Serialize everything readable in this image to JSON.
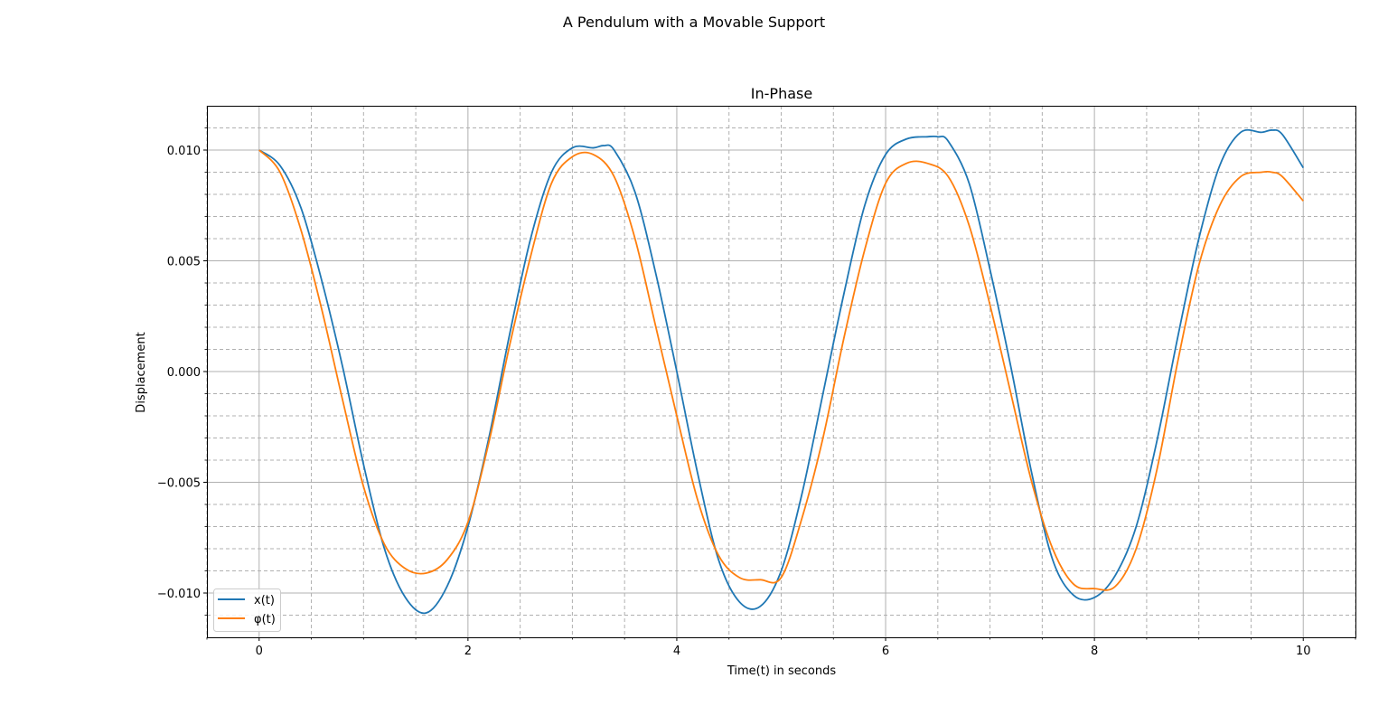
{
  "figure": {
    "suptitle": "A Pendulum with a Movable Support"
  },
  "chart_data": {
    "type": "line",
    "title": "In-Phase",
    "xlabel": "Time(t) in seconds",
    "ylabel": "Displacement",
    "xlim": [
      -0.5,
      10.5
    ],
    "ylim": [
      -0.012,
      0.012
    ],
    "xticks": [
      0,
      2,
      4,
      6,
      8,
      10
    ],
    "xtick_labels": [
      "0",
      "2",
      "4",
      "6",
      "8",
      "10"
    ],
    "yticks": [
      -0.01,
      -0.005,
      0.0,
      0.005,
      0.01
    ],
    "ytick_labels": [
      "−0.010",
      "−0.005",
      "0.000",
      "0.005",
      "0.010"
    ],
    "grid": {
      "major": true,
      "minor": true,
      "minor_style": "dashed"
    },
    "legend": {
      "position": "lower-left"
    },
    "series": [
      {
        "name": "x(t)",
        "color": "#1f77b4",
        "x": [
          0,
          0.2,
          0.4,
          0.6,
          0.8,
          1.0,
          1.2,
          1.4,
          1.6,
          1.8,
          2.0,
          2.2,
          2.4,
          2.6,
          2.8,
          3.0,
          3.2,
          3.3,
          3.4,
          3.6,
          3.8,
          4.0,
          4.2,
          4.4,
          4.6,
          4.8,
          5.0,
          5.2,
          5.4,
          5.6,
          5.8,
          6.0,
          6.2,
          6.4,
          6.5,
          6.6,
          6.8,
          7.0,
          7.2,
          7.4,
          7.6,
          7.8,
          8.0,
          8.2,
          8.4,
          8.6,
          8.8,
          9.0,
          9.2,
          9.4,
          9.6,
          9.7,
          9.8,
          10.0
        ],
        "y": [
          0.01,
          0.0093,
          0.0074,
          0.0041,
          0.0002,
          -0.0042,
          -0.008,
          -0.0102,
          -0.0109,
          -0.0097,
          -0.007,
          -0.003,
          0.0017,
          0.006,
          0.009,
          0.0101,
          0.0101,
          0.0102,
          0.01,
          0.0081,
          0.0044,
          0.0,
          -0.0046,
          -0.0085,
          -0.0104,
          -0.0106,
          -0.009,
          -0.0055,
          -0.001,
          0.0035,
          0.0075,
          0.0098,
          0.0105,
          0.0106,
          0.0106,
          0.0104,
          0.0085,
          0.0046,
          0.0002,
          -0.0046,
          -0.0085,
          -0.0101,
          -0.0102,
          -0.0092,
          -0.007,
          -0.0031,
          0.0016,
          0.006,
          0.0093,
          0.0108,
          0.0108,
          0.0109,
          0.0107,
          0.0092
        ]
      },
      {
        "name": "φ(t)",
        "color": "#ff7f0e",
        "x": [
          0,
          0.2,
          0.4,
          0.6,
          0.8,
          1.0,
          1.2,
          1.4,
          1.6,
          1.8,
          2.0,
          2.2,
          2.4,
          2.6,
          2.8,
          3.0,
          3.2,
          3.4,
          3.6,
          3.8,
          4.0,
          4.2,
          4.4,
          4.6,
          4.8,
          5.0,
          5.2,
          5.4,
          5.6,
          5.8,
          6.0,
          6.2,
          6.4,
          6.6,
          6.8,
          7.0,
          7.2,
          7.4,
          7.6,
          7.8,
          8.0,
          8.2,
          8.4,
          8.6,
          8.8,
          9.0,
          9.2,
          9.4,
          9.6,
          9.7,
          9.8,
          10.0
        ],
        "y": [
          0.01,
          0.009,
          0.0064,
          0.0028,
          -0.0013,
          -0.0052,
          -0.0078,
          -0.0089,
          -0.0091,
          -0.0085,
          -0.0068,
          -0.0032,
          0.0012,
          0.0052,
          0.0085,
          0.0097,
          0.0098,
          0.0088,
          0.006,
          0.002,
          -0.002,
          -0.0058,
          -0.0083,
          -0.0093,
          -0.0094,
          -0.0093,
          -0.0066,
          -0.003,
          0.0015,
          0.0055,
          0.0085,
          0.0094,
          0.0094,
          0.0088,
          0.0066,
          0.003,
          -0.001,
          -0.005,
          -0.008,
          -0.0096,
          -0.0098,
          -0.0097,
          -0.008,
          -0.0044,
          0.0005,
          0.0048,
          0.0075,
          0.0088,
          0.009,
          0.009,
          0.0088,
          0.0077
        ]
      }
    ]
  }
}
